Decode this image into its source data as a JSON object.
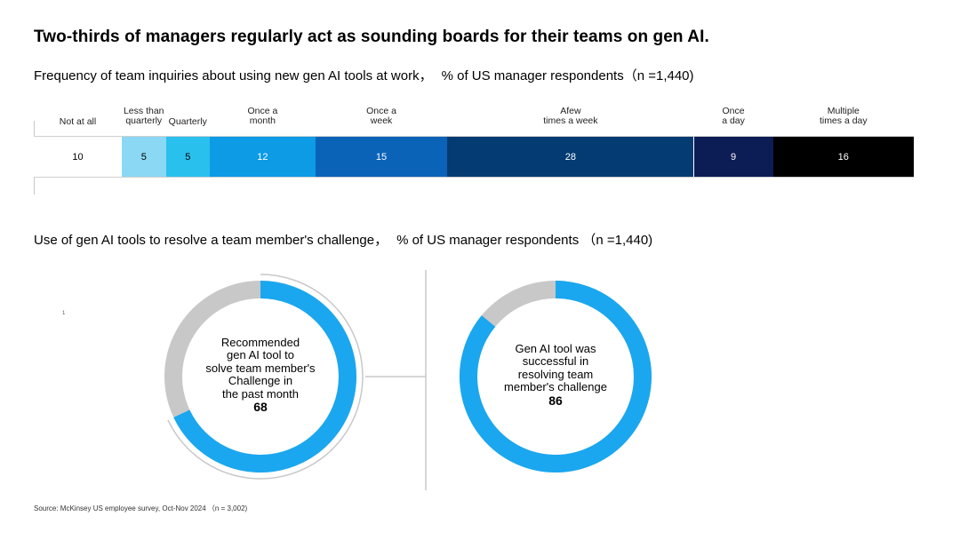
{
  "title": "Two-thirds of managers regularly act as sounding boards for their teams on gen AI.",
  "bar_section": {
    "subtitle": "Frequency of team inquiries about using new gen AI tools at work，",
    "unit": "% of US manager respondents（n =1,440)"
  },
  "donut_section": {
    "subtitle": "Use of gen AI tools to resolve a team member's challenge，",
    "unit": "% of US manager respondents （n =1,440)"
  },
  "stray_mark": "1",
  "source": "Source: McKinsey US employee survey, Oct-Nov 2024 （n = 3,002)",
  "colors": {
    "text_dark": "#000000",
    "ring_gray": "#c8c8c8",
    "ring_blue": "#1aa7ef",
    "divider": "#c8c8c8"
  },
  "chart_data": [
    {
      "type": "bar",
      "stacked": true,
      "orientation": "horizontal",
      "title": "Frequency of team inquiries about using new gen AI tools at work",
      "ylabel": "% of US manager respondents (n =1,440)",
      "categories": [
        "Not at all",
        "Less than\nquarterly",
        "Quarterly",
        "Once a\nmonth",
        "Once a\nweek",
        "Afew\ntimes a week",
        "Once\na day",
        "Multiple\ntimes a day"
      ],
      "values": [
        10,
        5,
        5,
        12,
        15,
        28,
        9,
        16
      ],
      "labels": [
        "10",
        "5",
        "5",
        "12",
        "15",
        "28",
        "9",
        "16"
      ],
      "colors": [
        "#ffffff",
        "#8ad8f3",
        "#29c0ee",
        "#0d9be6",
        "#0b63b8",
        "#033b72",
        "#0c1c55",
        "#000000"
      ],
      "text_colors": [
        "#000000",
        "#000000",
        "#000000",
        "#ffffff",
        "#ffffff",
        "#ffffff",
        "#ffffff",
        "#ffffff"
      ]
    },
    {
      "type": "pie",
      "donut": true,
      "label": "Recommended gen AI tool to solve team member's Challenge in the past month",
      "text_lines": [
        "Recommended",
        "gen AI tool to",
        "solve team member's",
        "Challenge in",
        "the past month"
      ],
      "value": 68,
      "value_label": "68",
      "colors": [
        "#1aa7ef",
        "#c8c8c8"
      ]
    },
    {
      "type": "pie",
      "donut": true,
      "label": "Gen AI tool was successful in resolving team member's challenge",
      "text_lines": [
        "Gen AI tool was",
        "successful in",
        "resolving team",
        "member's challenge"
      ],
      "value": 86,
      "value_label": "86",
      "colors": [
        "#1aa7ef",
        "#c8c8c8"
      ]
    }
  ]
}
